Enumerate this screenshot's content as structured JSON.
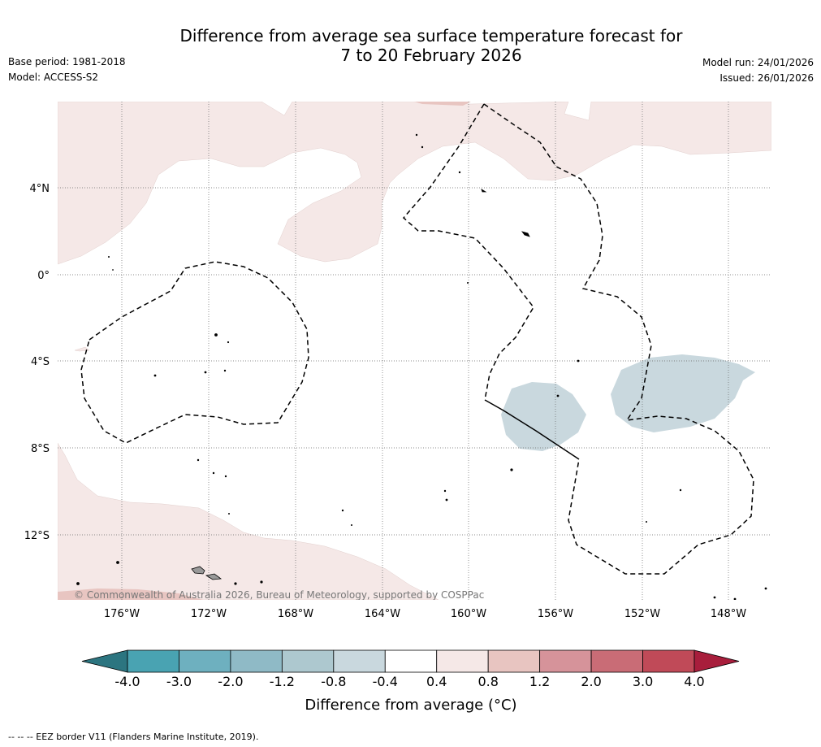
{
  "header": {
    "title_line1": "Difference from average sea surface temperature forecast for",
    "title_line2": "7 to 20 February 2026",
    "base_period": "Base period: 1981-2018",
    "model": "Model: ACCESS-S2",
    "model_run": "Model run: 24/01/2026",
    "issued": "Issued: 26/01/2026"
  },
  "map": {
    "lat_labels": [
      "4°N",
      "0°",
      "4°S",
      "8°S",
      "12°S"
    ],
    "lon_labels": [
      "176°W",
      "172°W",
      "168°W",
      "164°W",
      "160°W",
      "156°W",
      "152°W",
      "148°W"
    ],
    "copyright": "© Commonwealth of Australia 2026, Bureau of Meteorology, supported by COSPPac"
  },
  "colorbar": {
    "ticks": [
      "-4.0",
      "-3.0",
      "-2.0",
      "-1.2",
      "-0.8",
      "-0.4",
      "0.4",
      "0.8",
      "1.2",
      "2.0",
      "3.0",
      "4.0"
    ],
    "colors": [
      "#2c7580",
      "#49a3b2",
      "#6eb0bf",
      "#8fbac6",
      "#adc8cf",
      "#c9d8de",
      "#ffffff",
      "#f5e8e7",
      "#e8c5c1",
      "#d6939a",
      "#c96c76",
      "#c04a58",
      "#a81e3c"
    ],
    "label": "Difference from average (°C)"
  },
  "footer": {
    "eez_note": "--  --  -- EEZ border V11 (Flanders Marine Institute, 2019)."
  }
}
